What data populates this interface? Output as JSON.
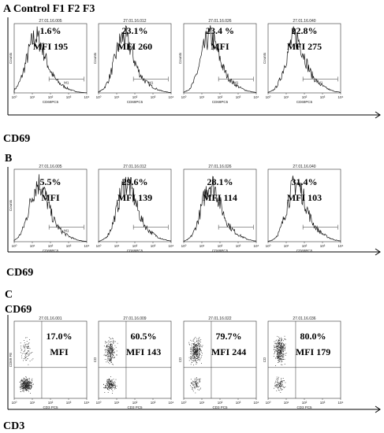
{
  "figure": {
    "panel_a_label": "A Control F1 F2 F3",
    "panel_a_axis_label": "CD69",
    "panel_b_label": "B",
    "panel_b_axis_label": "CD69",
    "panel_c_label": "C",
    "panel_c_top_label": "CD69",
    "panel_c_axis_label": "CD3"
  },
  "chart_data": [
    {
      "panel": "A",
      "type": "area",
      "plots": [
        {
          "header": "27.01.16.005",
          "gate_label": "M1",
          "xlabel": "CD69PC5",
          "ylabel": "Counts",
          "percent": "1.6%",
          "mfi": "MFI 195",
          "peak_decade": 1.15
        },
        {
          "header": "27.01.16.012",
          "gate_label": "M1",
          "xlabel": "CD69PC5",
          "ylabel": "Counts",
          "percent": "23.1%",
          "mfi": "MFI 260",
          "peak_decade": 1.35
        },
        {
          "header": "27.01.16.026",
          "gate_label": "M1",
          "xlabel": "CD69PC5",
          "ylabel": "Counts",
          "percent": "23.4 %",
          "mfi": "MFI",
          "peak_decade": 1.4
        },
        {
          "header": "27.01.16.040",
          "gate_label": "M1",
          "xlabel": "CD69PC5",
          "ylabel": "Counts",
          "percent": "22.8%",
          "mfi": "MFI 275",
          "peak_decade": 1.45
        }
      ],
      "xticks": [
        "10⁰",
        "10¹",
        "10²",
        "10³",
        "10⁴"
      ]
    },
    {
      "panel": "B",
      "type": "area",
      "plots": [
        {
          "header": "27.01.16.005",
          "gate_label": "M1",
          "xlabel": "CD69PC5",
          "ylabel": "Counts",
          "percent": "5.5%",
          "mfi": "MFI",
          "peak_decade": 1.3
        },
        {
          "header": "27.01.16.012",
          "gate_label": "",
          "xlabel": "CD69PC5",
          "ylabel": "",
          "percent": "29.6%",
          "mfi": "MFI 139",
          "peak_decade": 1.5
        },
        {
          "header": "27.01.16.026",
          "gate_label": "",
          "xlabel": "CD69PC5",
          "ylabel": "",
          "percent": "28.1%",
          "mfi": "MFI 114",
          "peak_decade": 1.45
        },
        {
          "header": "27.01.16.040",
          "gate_label": "",
          "xlabel": "CD69PC5",
          "ylabel": "",
          "percent": "31.4%",
          "mfi": "MFI 103",
          "peak_decade": 1.5
        }
      ],
      "xticks": [
        "10⁰",
        "10¹",
        "10²",
        "10³",
        "10⁴"
      ]
    },
    {
      "panel": "C",
      "type": "scatter",
      "plots": [
        {
          "header": "27.01.16.001",
          "xlabel": "CD3 PC5",
          "ylabel": "CD69 FE",
          "percent": "17.0%",
          "mfi": "MFI",
          "upper_fraction": 0.17
        },
        {
          "header": "27.01.16.009",
          "xlabel": "CD3 PC5",
          "ylabel": "CD",
          "percent": "60.5%",
          "mfi": "MFI 143",
          "upper_fraction": 0.6
        },
        {
          "header": "27.01.16.022",
          "xlabel": "CD3 PC5",
          "ylabel": "CD",
          "percent": "79.7%",
          "mfi": "MFI 244",
          "upper_fraction": 0.8
        },
        {
          "header": "27.01.16.036",
          "xlabel": "CD3 PC5",
          "ylabel": "CD",
          "percent": "80.0%",
          "mfi": "MFI 179",
          "upper_fraction": 0.8
        }
      ],
      "xticks": [
        "10⁰",
        "10¹",
        "10²",
        "10³",
        "10⁴"
      ]
    }
  ]
}
